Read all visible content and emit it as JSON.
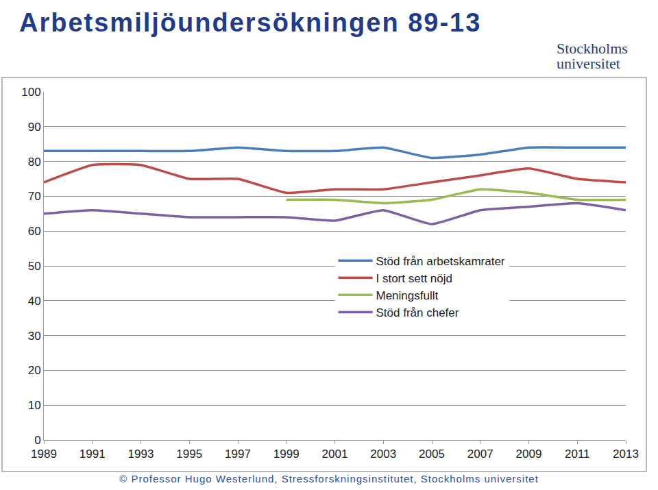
{
  "title": "Arbetsmiljöundersökningen 89-13",
  "logo": "Stockholms universitet",
  "footer": "© Professor Hugo Westerlund, Stressforskningsinstitutet, Stockholms universitet",
  "chart_data": {
    "type": "line",
    "categories": [
      "1989",
      "1991",
      "1993",
      "1995",
      "1997",
      "1999",
      "2001",
      "2003",
      "2005",
      "2007",
      "2009",
      "2011",
      "2013"
    ],
    "series": [
      {
        "name": "Stöd från arbetskamrater",
        "color": "#4a7ebb",
        "values": [
          83,
          83,
          83,
          83,
          84,
          83,
          83,
          84,
          81,
          82,
          84,
          84,
          84
        ]
      },
      {
        "name": "I stort sett nöjd",
        "color": "#be4b48",
        "values": [
          74,
          79,
          79,
          75,
          75,
          71,
          72,
          72,
          74,
          76,
          78,
          75,
          74
        ]
      },
      {
        "name": "Meningsfullt",
        "color": "#98b954",
        "values": [
          null,
          null,
          null,
          null,
          null,
          69,
          69,
          68,
          69,
          72,
          71,
          69,
          69
        ]
      },
      {
        "name": "Stöd från chefer",
        "color": "#7d60a0",
        "values": [
          65,
          66,
          65,
          64,
          64,
          64,
          63,
          66,
          62,
          66,
          67,
          68,
          66
        ]
      }
    ],
    "ylim": [
      0,
      100
    ],
    "yticks": [
      0,
      10,
      20,
      30,
      40,
      50,
      60,
      70,
      80,
      90,
      100
    ],
    "grid": true,
    "legend": "right"
  }
}
